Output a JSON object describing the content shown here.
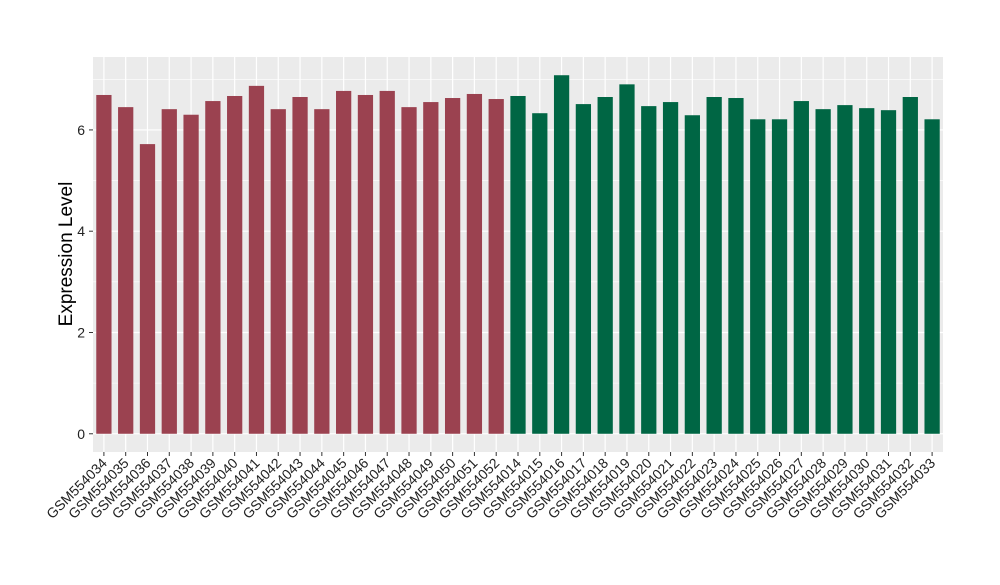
{
  "chart_data": {
    "type": "bar",
    "title": "",
    "xlabel": "",
    "ylabel": "Expression Level",
    "ylim": [
      -0.36,
      7.44
    ],
    "yticks": [
      0,
      2,
      4,
      6
    ],
    "grid": true,
    "legend": "none",
    "colors": {
      "group1": "#9b4250",
      "group2": "#006644",
      "panel": "#ebebeb",
      "grid": "#ffffff"
    },
    "categories": [
      "GSM554034",
      "GSM554035",
      "GSM554036",
      "GSM554037",
      "GSM554038",
      "GSM554039",
      "GSM554040",
      "GSM554041",
      "GSM554042",
      "GSM554043",
      "GSM554044",
      "GSM554045",
      "GSM554046",
      "GSM554047",
      "GSM554048",
      "GSM554049",
      "GSM554050",
      "GSM554051",
      "GSM554052",
      "GSM554014",
      "GSM554015",
      "GSM554016",
      "GSM554017",
      "GSM554018",
      "GSM554019",
      "GSM554020",
      "GSM554021",
      "GSM554022",
      "GSM554023",
      "GSM554024",
      "GSM554025",
      "GSM554026",
      "GSM554027",
      "GSM554028",
      "GSM554029",
      "GSM554030",
      "GSM554031",
      "GSM554032",
      "GSM554033"
    ],
    "values": [
      6.69,
      6.45,
      5.72,
      6.41,
      6.3,
      6.57,
      6.67,
      6.87,
      6.41,
      6.65,
      6.41,
      6.77,
      6.69,
      6.77,
      6.45,
      6.55,
      6.63,
      6.71,
      6.61,
      6.67,
      6.33,
      7.08,
      6.51,
      6.65,
      6.9,
      6.47,
      6.55,
      6.29,
      6.65,
      6.63,
      6.21,
      6.21,
      6.57,
      6.41,
      6.49,
      6.43,
      6.39,
      6.65,
      6.21
    ],
    "groups": [
      1,
      1,
      1,
      1,
      1,
      1,
      1,
      1,
      1,
      1,
      1,
      1,
      1,
      1,
      1,
      1,
      1,
      1,
      1,
      2,
      2,
      2,
      2,
      2,
      2,
      2,
      2,
      2,
      2,
      2,
      2,
      2,
      2,
      2,
      2,
      2,
      2,
      2,
      2
    ]
  }
}
